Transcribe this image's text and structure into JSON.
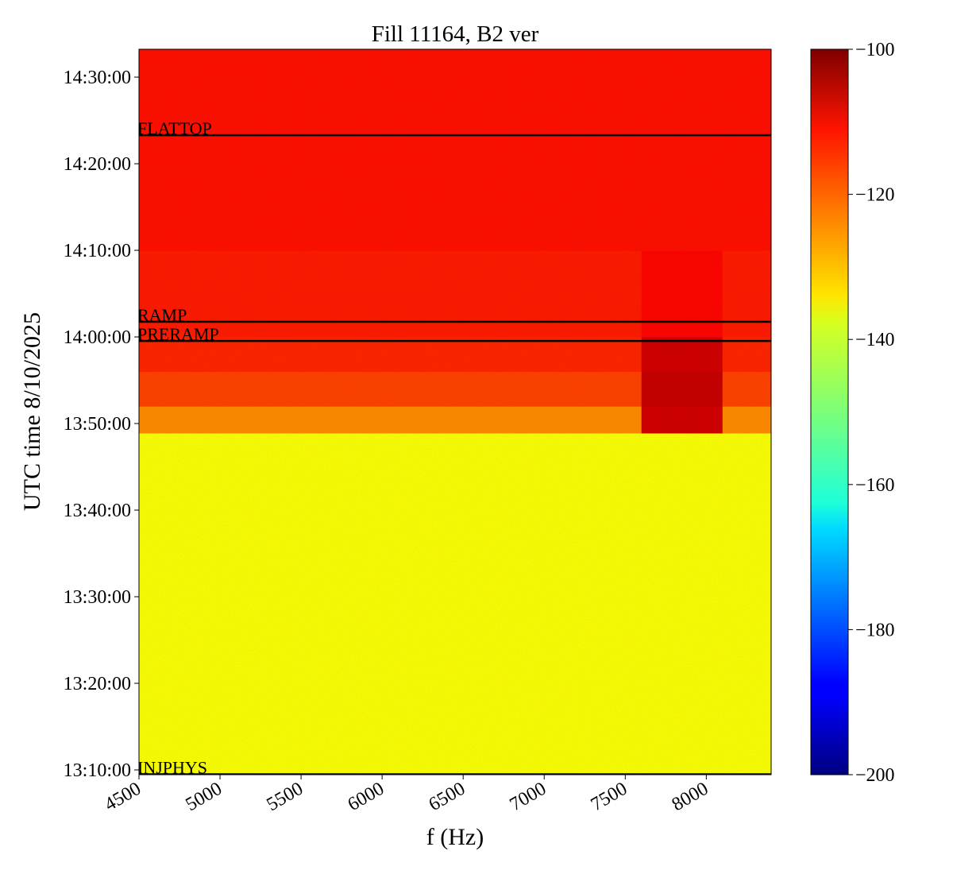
{
  "chart_data": {
    "type": "heatmap",
    "title": "Fill 11164, B2 ver",
    "x_label": "f (Hz)",
    "y_label": "UTC time 8/10/2025",
    "colormap": "jet",
    "x": [
      4500,
      5000,
      5500,
      6000,
      6500,
      7000,
      7500,
      7600,
      8100,
      8400
    ],
    "y": [
      47367,
      48600,
      49734,
      49920,
      50160,
      50400,
      51000,
      51600,
      52393
    ],
    "z": [
      [
        -138,
        -138,
        -138,
        -138,
        -138,
        -138,
        -138,
        -138,
        -138
      ],
      [
        -138,
        -138,
        -138,
        -138,
        -138,
        -138,
        -138,
        -138,
        -138
      ],
      [
        -126,
        -126,
        -126,
        -126,
        -126,
        -126,
        -126,
        -108,
        -126
      ],
      [
        -119,
        -119,
        -119,
        -119,
        -119,
        -119,
        -119,
        -107,
        -119
      ],
      [
        -116,
        -116,
        -116,
        -116,
        -116,
        -116,
        -116,
        -108,
        -116
      ],
      [
        -115,
        -115,
        -115,
        -115,
        -115,
        -115,
        -115,
        -113,
        -115
      ],
      [
        -114,
        -114,
        -114,
        -114,
        -114,
        -114,
        -114,
        -114,
        -114
      ],
      [
        -114,
        -114,
        -114,
        -114,
        -114,
        -114,
        -114,
        -114,
        -114
      ]
    ],
    "xlim": [
      4500,
      8400
    ],
    "xticks": [
      4500,
      5000,
      5500,
      6000,
      6500,
      7000,
      7500,
      8000
    ],
    "ylim": [
      47367,
      52393
    ],
    "yticks": [
      {
        "value": 47400,
        "label": "13:10:00"
      },
      {
        "value": 48000,
        "label": "13:20:00"
      },
      {
        "value": 48600,
        "label": "13:30:00"
      },
      {
        "value": 49200,
        "label": "13:40:00"
      },
      {
        "value": 49800,
        "label": "13:50:00"
      },
      {
        "value": 50400,
        "label": "14:00:00"
      },
      {
        "value": 51000,
        "label": "14:10:00"
      },
      {
        "value": 51600,
        "label": "14:20:00"
      },
      {
        "value": 52200,
        "label": "14:30:00"
      }
    ],
    "clim": [
      -200,
      -100
    ],
    "cticks": [
      {
        "value": -100,
        "label": "−100"
      },
      {
        "value": -120,
        "label": "−120"
      },
      {
        "value": -140,
        "label": "−140"
      },
      {
        "value": -160,
        "label": "−160"
      },
      {
        "value": -180,
        "label": "−180"
      },
      {
        "value": -200,
        "label": "−200"
      }
    ],
    "annotations": [
      {
        "text": "FLATTOP",
        "y": 51798
      },
      {
        "text": "RAMP",
        "y": 50505
      },
      {
        "text": "PRERAMP",
        "y": 50372
      },
      {
        "text": "INJPHYS",
        "y": 47370
      }
    ]
  }
}
